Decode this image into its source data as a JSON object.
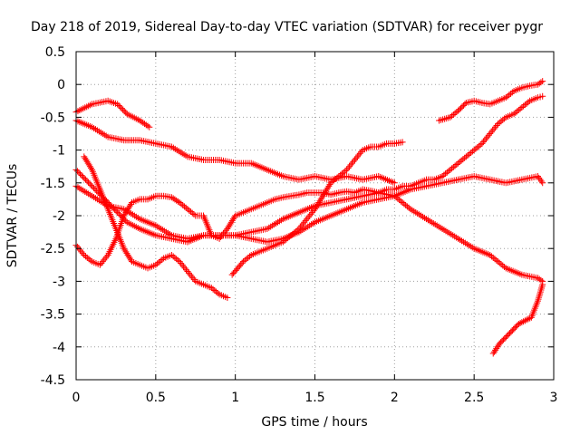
{
  "chart_data": {
    "type": "scatter",
    "title": "Day 218 of 2019, Sidereal Day-to-day VTEC variation (SDTVAR) for receiver pygr",
    "xlabel": "GPS time / hours",
    "ylabel": "SDTVAR / TECUs",
    "xlim": [
      0,
      3
    ],
    "ylim": [
      -4.5,
      0.5
    ],
    "xticks": [
      0,
      0.5,
      1,
      1.5,
      2,
      2.5,
      3
    ],
    "xtick_labels": [
      "0",
      "0.5",
      "1",
      "1.5",
      "2",
      "2.5",
      "3"
    ],
    "yticks": [
      0.5,
      0,
      -0.5,
      -1,
      -1.5,
      -2,
      -2.5,
      -3,
      -3.5,
      -4,
      -4.5
    ],
    "ytick_labels": [
      "0.5",
      "0",
      "-0.5",
      "-1",
      "-1.5",
      "-2",
      "-2.5",
      "-3",
      "-3.5",
      "-4",
      "-4.5"
    ],
    "grid": true,
    "marker": "+",
    "color": "#ff0000",
    "series": [
      {
        "name": "s1",
        "x": [
          0.0,
          0.1,
          0.2,
          0.26,
          0.32,
          0.4,
          0.46
        ],
        "y": [
          -0.42,
          -0.3,
          -0.25,
          -0.3,
          -0.45,
          -0.55,
          -0.65
        ]
      },
      {
        "name": "s2",
        "x": [
          0.0,
          0.1,
          0.2,
          0.3,
          0.4,
          0.5,
          0.6,
          0.7,
          0.8,
          0.9,
          1.0,
          1.1,
          1.2,
          1.3,
          1.4,
          1.5,
          1.6,
          1.7,
          1.8,
          1.9,
          2.0
        ],
        "y": [
          -0.55,
          -0.65,
          -0.8,
          -0.85,
          -0.85,
          -0.9,
          -0.95,
          -1.1,
          -1.15,
          -1.15,
          -1.2,
          -1.2,
          -1.3,
          -1.4,
          -1.45,
          -1.4,
          -1.45,
          -1.4,
          -1.45,
          -1.4,
          -1.5
        ]
      },
      {
        "name": "s3",
        "x": [
          0.0,
          0.06,
          0.12,
          0.2,
          0.26,
          0.32,
          0.4,
          0.5,
          0.6,
          0.7,
          0.8,
          0.9,
          1.0,
          1.1,
          1.2,
          1.3,
          1.4,
          1.5,
          1.6,
          1.7,
          1.8,
          1.9,
          2.0,
          2.1,
          2.2,
          2.3,
          2.4,
          2.5,
          2.6,
          2.7,
          2.8,
          2.9,
          2.93
        ],
        "y": [
          -1.3,
          -1.45,
          -1.6,
          -1.8,
          -1.95,
          -2.1,
          -2.2,
          -2.3,
          -2.35,
          -2.4,
          -2.3,
          -2.3,
          -2.3,
          -2.35,
          -2.4,
          -2.35,
          -2.25,
          -2.1,
          -2.0,
          -1.9,
          -1.8,
          -1.75,
          -1.7,
          -1.6,
          -1.55,
          -1.5,
          -1.45,
          -1.4,
          -1.45,
          -1.5,
          -1.45,
          -1.4,
          -1.5
        ]
      },
      {
        "name": "s4",
        "x": [
          0.0,
          0.1,
          0.2,
          0.3,
          0.4,
          0.5,
          0.6,
          0.7,
          0.8,
          0.9,
          1.0,
          1.1,
          1.2,
          1.3,
          1.4,
          1.5,
          1.6,
          1.7,
          1.8,
          1.9,
          2.0,
          2.1,
          2.2,
          2.3,
          2.4,
          2.5,
          2.6,
          2.7,
          2.8,
          2.9,
          2.93
        ],
        "y": [
          -1.55,
          -1.7,
          -1.85,
          -1.9,
          -2.05,
          -2.15,
          -2.3,
          -2.35,
          -2.3,
          -2.3,
          -2.3,
          -2.25,
          -2.2,
          -2.05,
          -1.95,
          -1.85,
          -1.8,
          -1.75,
          -1.7,
          -1.65,
          -1.7,
          -1.9,
          -2.05,
          -2.2,
          -2.35,
          -2.5,
          -2.6,
          -2.8,
          -2.9,
          -2.95,
          -3.0
        ]
      },
      {
        "name": "s5",
        "x": [
          0.0,
          0.05,
          0.1,
          0.15,
          0.2,
          0.25,
          0.3,
          0.35,
          0.4,
          0.45,
          0.5,
          0.55,
          0.6,
          0.65,
          0.7,
          0.75,
          0.8,
          0.85,
          0.9,
          0.95,
          1.0,
          1.05,
          1.1,
          1.15,
          1.2,
          1.25,
          1.3,
          1.35,
          1.4,
          1.45,
          1.5,
          1.55,
          1.6,
          1.65,
          1.7,
          1.75,
          1.8,
          1.85,
          1.9,
          1.95,
          2.0,
          2.05,
          2.1,
          2.15,
          2.2,
          2.25,
          2.3,
          2.35,
          2.4,
          2.45,
          2.5,
          2.55,
          2.6,
          2.65,
          2.7,
          2.75,
          2.8,
          2.85,
          2.9,
          2.93
        ],
        "y": [
          -2.45,
          -2.6,
          -2.7,
          -2.75,
          -2.6,
          -2.35,
          -2.0,
          -1.8,
          -1.75,
          -1.75,
          -1.7,
          -1.7,
          -1.72,
          -1.8,
          -1.9,
          -2.0,
          -2.0,
          -2.3,
          -2.35,
          -2.2,
          -2.0,
          -1.95,
          -1.9,
          -1.85,
          -1.8,
          -1.75,
          -1.72,
          -1.7,
          -1.68,
          -1.65,
          -1.65,
          -1.65,
          -1.68,
          -1.65,
          -1.63,
          -1.65,
          -1.6,
          -1.62,
          -1.65,
          -1.6,
          -1.6,
          -1.55,
          -1.55,
          -1.5,
          -1.45,
          -1.45,
          -1.4,
          -1.3,
          -1.2,
          -1.1,
          -1.0,
          -0.9,
          -0.75,
          -0.6,
          -0.5,
          -0.45,
          -0.35,
          -0.25,
          -0.2,
          -0.18
        ]
      },
      {
        "name": "s6",
        "x": [
          0.05,
          0.1,
          0.15,
          0.2,
          0.25,
          0.3,
          0.35,
          0.4,
          0.45,
          0.5,
          0.55,
          0.6,
          0.65,
          0.7,
          0.75,
          0.8,
          0.85,
          0.9,
          0.95
        ],
        "y": [
          -1.1,
          -1.3,
          -1.6,
          -1.9,
          -2.2,
          -2.5,
          -2.7,
          -2.75,
          -2.8,
          -2.75,
          -2.65,
          -2.6,
          -2.7,
          -2.85,
          -3.0,
          -3.05,
          -3.1,
          -3.2,
          -3.25
        ]
      },
      {
        "name": "s7",
        "x": [
          0.98,
          1.05,
          1.1,
          1.15,
          1.2,
          1.25,
          1.3,
          1.35,
          1.4,
          1.45,
          1.5,
          1.55,
          1.6,
          1.65,
          1.7,
          1.75,
          1.8,
          1.85,
          1.9,
          1.95,
          2.0,
          2.05
        ],
        "y": [
          -2.9,
          -2.7,
          -2.6,
          -2.55,
          -2.5,
          -2.45,
          -2.4,
          -2.3,
          -2.2,
          -2.05,
          -1.9,
          -1.7,
          -1.5,
          -1.4,
          -1.3,
          -1.15,
          -1.0,
          -0.95,
          -0.95,
          -0.9,
          -0.9,
          -0.88
        ]
      },
      {
        "name": "s8",
        "x": [
          2.28,
          2.35,
          2.4,
          2.45,
          2.5,
          2.55,
          2.6,
          2.65,
          2.7,
          2.75,
          2.8,
          2.85,
          2.9,
          2.93
        ],
        "y": [
          -0.55,
          -0.5,
          -0.4,
          -0.28,
          -0.25,
          -0.28,
          -0.3,
          -0.25,
          -0.2,
          -0.1,
          -0.05,
          -0.02,
          0.0,
          0.05
        ]
      },
      {
        "name": "s9",
        "x": [
          2.62,
          2.66,
          2.7,
          2.74,
          2.78,
          2.82,
          2.86,
          2.9,
          2.93
        ],
        "y": [
          -4.1,
          -3.95,
          -3.85,
          -3.75,
          -3.65,
          -3.6,
          -3.55,
          -3.3,
          -3.05
        ]
      }
    ]
  }
}
